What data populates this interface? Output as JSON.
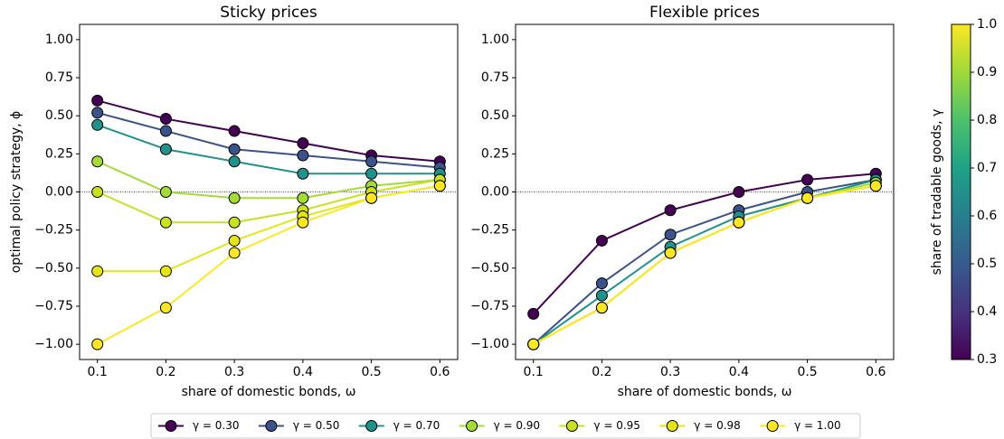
{
  "chart_data": [
    {
      "type": "line",
      "title": "Sticky prices",
      "xlabel": "share of domestic bonds, ω",
      "ylabel": "optimal policy strategy, ϕ",
      "x": [
        0.1,
        0.2,
        0.3,
        0.4,
        0.5,
        0.6
      ],
      "series": [
        {
          "name": "γ = 0.30",
          "color": "#440154",
          "values": [
            0.6,
            0.48,
            0.4,
            0.32,
            0.24,
            0.2
          ]
        },
        {
          "name": "γ = 0.50",
          "color": "#3b528b",
          "values": [
            0.52,
            0.4,
            0.28,
            0.24,
            0.2,
            0.16
          ]
        },
        {
          "name": "γ = 0.70",
          "color": "#21918c",
          "values": [
            0.44,
            0.28,
            0.2,
            0.12,
            0.12,
            0.12
          ]
        },
        {
          "name": "γ = 0.90",
          "color": "#a5db36",
          "values": [
            0.2,
            0,
            -0.04,
            -0.04,
            0.04,
            0.08
          ]
        },
        {
          "name": "γ = 0.95",
          "color": "#cae11f",
          "values": [
            0,
            -0.2,
            -0.2,
            -0.12,
            0,
            0.08
          ]
        },
        {
          "name": "γ = 0.98",
          "color": "#e5e419",
          "values": [
            -0.52,
            -0.52,
            -0.32,
            -0.16,
            -0.04,
            0.04
          ]
        },
        {
          "name": "γ = 1.00",
          "color": "#fde725",
          "values": [
            -1,
            -0.76,
            -0.4,
            -0.2,
            -0.04,
            0.04
          ]
        }
      ],
      "xlim": [
        0.074,
        0.626
      ],
      "ylim": [
        -1.1,
        1.1
      ],
      "xticks": [
        0.1,
        0.2,
        0.3,
        0.4,
        0.5,
        0.6
      ],
      "yticks": [
        {
          "value": 1,
          "label": "1.00"
        },
        {
          "value": 0.75,
          "label": "0.75"
        },
        {
          "value": 0.5,
          "label": "0.50"
        },
        {
          "value": 0.25,
          "label": "0.25"
        },
        {
          "value": 0,
          "label": "0.00"
        },
        {
          "value": -0.25,
          "label": "−0.25"
        },
        {
          "value": -0.5,
          "label": "−0.50"
        },
        {
          "value": -0.75,
          "label": "−0.75"
        },
        {
          "value": -1,
          "label": "−1.00"
        }
      ],
      "hline": 0
    },
    {
      "type": "line",
      "title": "Flexible prices",
      "xlabel": "share of domestic bonds, ω",
      "x": [
        0.1,
        0.2,
        0.3,
        0.4,
        0.5,
        0.6
      ],
      "series": [
        {
          "color": "#440154",
          "values": [
            -0.8,
            -0.32,
            -0.12,
            0,
            0.08,
            0.12
          ]
        },
        {
          "color": "#3b528b",
          "values": [
            -1,
            -0.6,
            -0.28,
            -0.12,
            0,
            0.08
          ]
        },
        {
          "color": "#21918c",
          "values": [
            -1,
            -0.68,
            -0.36,
            -0.16,
            -0.04,
            0.08
          ]
        },
        {
          "color": "#a5db36",
          "values": [
            -1,
            -0.76,
            -0.4,
            -0.2,
            -0.04,
            0.06
          ]
        },
        {
          "color": "#cae11f",
          "values": [
            -1,
            -0.76,
            -0.4,
            -0.2,
            -0.04,
            0.04
          ]
        },
        {
          "color": "#e5e419",
          "values": [
            -1,
            -0.76,
            -0.4,
            -0.2,
            -0.04,
            0.04
          ]
        },
        {
          "color": "#fde725",
          "values": [
            -1,
            -0.76,
            -0.4,
            -0.2,
            -0.04,
            0.04
          ]
        }
      ],
      "xlim": [
        0.074,
        0.626
      ],
      "ylim": [
        -1.1,
        1.1
      ],
      "xticks": [
        0.1,
        0.2,
        0.3,
        0.4,
        0.5,
        0.6
      ],
      "yticks": [
        {
          "value": 1,
          "label": "1.00"
        },
        {
          "value": 0.75,
          "label": "0.75"
        },
        {
          "value": 0.5,
          "label": "0.50"
        },
        {
          "value": 0.25,
          "label": "0.25"
        },
        {
          "value": 0,
          "label": "0.00"
        },
        {
          "value": -0.25,
          "label": "−0.25"
        },
        {
          "value": -0.5,
          "label": "−0.50"
        },
        {
          "value": -0.75,
          "label": "−0.75"
        },
        {
          "value": -1,
          "label": "−1.00"
        }
      ],
      "hline": 0
    }
  ],
  "colorbar": {
    "label": "share of tradable goods, γ",
    "lim": [
      0.3,
      1
    ],
    "ticks": [
      0.3,
      0.4,
      0.5,
      0.6,
      0.7,
      0.8,
      0.9,
      {
        "value": 1,
        "label": "1.0"
      }
    ]
  }
}
